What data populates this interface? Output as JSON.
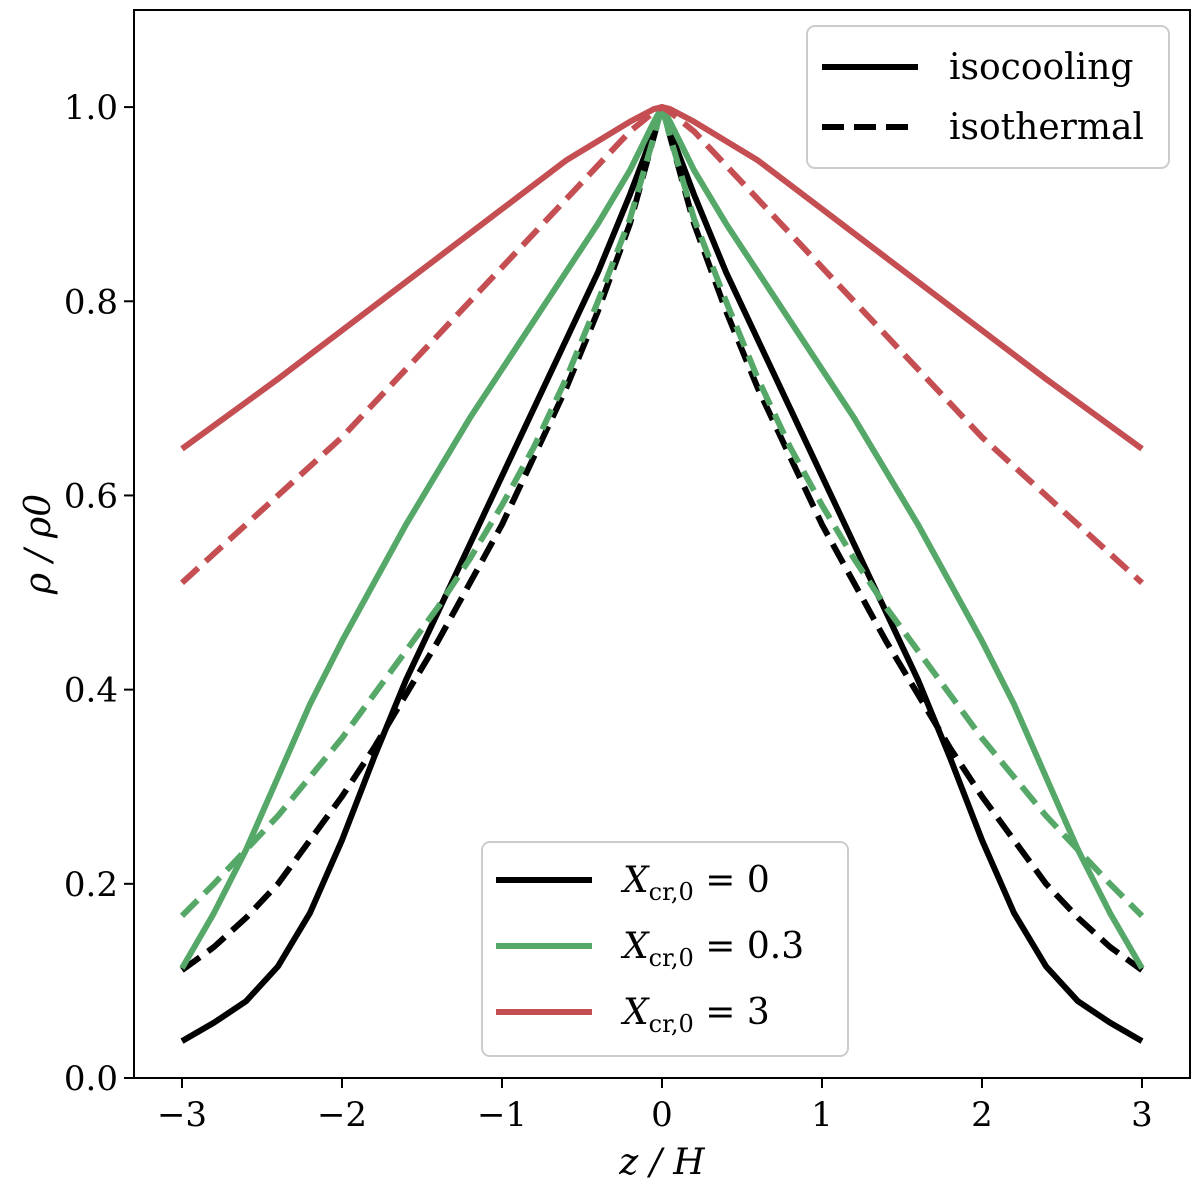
{
  "chart_data": {
    "type": "line",
    "title": "",
    "xlabel": "z / H",
    "ylabel": "ρ / ρ0",
    "xlim": [
      -3.3,
      3.3
    ],
    "ylim": [
      0.0,
      1.1
    ],
    "xticks": [
      -3,
      -2,
      -1,
      0,
      1,
      2,
      3
    ],
    "xtick_labels": [
      "−3",
      "−2",
      "−1",
      "0",
      "1",
      "2",
      "3"
    ],
    "yticks": [
      0.0,
      0.2,
      0.4,
      0.6,
      0.8,
      1.0
    ],
    "ytick_labels": [
      "0.0",
      "0.2",
      "0.4",
      "0.6",
      "0.8",
      "1.0"
    ],
    "grid": false,
    "x": [
      -3.0,
      -2.8,
      -2.6,
      -2.4,
      -2.2,
      -2.0,
      -1.8,
      -1.6,
      -1.4,
      -1.2,
      -1.0,
      -0.8,
      -0.6,
      -0.4,
      -0.2,
      -0.05,
      0.0,
      0.05,
      0.2,
      0.4,
      0.6,
      0.8,
      1.0,
      1.2,
      1.4,
      1.6,
      1.8,
      2.0,
      2.2,
      2.4,
      2.6,
      2.8,
      3.0
    ],
    "series": [
      {
        "name": "X_cr,0 = 0 isocooling",
        "color": "#000000",
        "dash": "solid",
        "values": [
          0.038,
          0.057,
          0.079,
          0.115,
          0.17,
          0.245,
          0.33,
          0.41,
          0.48,
          0.55,
          0.62,
          0.69,
          0.76,
          0.83,
          0.91,
          0.975,
          1.0,
          0.975,
          0.91,
          0.83,
          0.76,
          0.69,
          0.62,
          0.55,
          0.48,
          0.41,
          0.33,
          0.245,
          0.17,
          0.115,
          0.079,
          0.057,
          0.038
        ]
      },
      {
        "name": "X_cr,0 = 0 isothermal",
        "color": "#000000",
        "dash": "dashed",
        "values": [
          0.111,
          0.135,
          0.165,
          0.2,
          0.245,
          0.29,
          0.34,
          0.395,
          0.45,
          0.51,
          0.57,
          0.64,
          0.71,
          0.79,
          0.88,
          0.97,
          1.0,
          0.97,
          0.88,
          0.79,
          0.71,
          0.64,
          0.57,
          0.51,
          0.45,
          0.395,
          0.34,
          0.29,
          0.245,
          0.2,
          0.165,
          0.135,
          0.111
        ]
      },
      {
        "name": "X_cr,0 = 0.3 isocooling",
        "color": "#55a868",
        "dash": "solid",
        "values": [
          0.113,
          0.17,
          0.235,
          0.31,
          0.385,
          0.45,
          0.51,
          0.57,
          0.625,
          0.68,
          0.73,
          0.78,
          0.83,
          0.88,
          0.935,
          0.985,
          1.0,
          0.985,
          0.935,
          0.88,
          0.83,
          0.78,
          0.73,
          0.68,
          0.625,
          0.57,
          0.51,
          0.45,
          0.385,
          0.31,
          0.235,
          0.17,
          0.113
        ]
      },
      {
        "name": "X_cr,0 = 0.3 isothermal",
        "color": "#55a868",
        "dash": "dashed",
        "values": [
          0.167,
          0.2,
          0.235,
          0.27,
          0.31,
          0.35,
          0.395,
          0.44,
          0.485,
          0.535,
          0.59,
          0.65,
          0.72,
          0.8,
          0.885,
          0.97,
          1.0,
          0.97,
          0.885,
          0.8,
          0.72,
          0.65,
          0.59,
          0.535,
          0.485,
          0.44,
          0.395,
          0.35,
          0.31,
          0.27,
          0.235,
          0.2,
          0.167
        ]
      },
      {
        "name": "X_cr,0 = 3 isocooling",
        "color": "#c44e52",
        "dash": "solid",
        "values": [
          0.648,
          0.672,
          0.696,
          0.72,
          0.745,
          0.77,
          0.795,
          0.82,
          0.845,
          0.87,
          0.895,
          0.92,
          0.945,
          0.965,
          0.985,
          0.998,
          1.0,
          0.998,
          0.985,
          0.965,
          0.945,
          0.92,
          0.895,
          0.87,
          0.845,
          0.82,
          0.795,
          0.77,
          0.745,
          0.72,
          0.696,
          0.672,
          0.648
        ]
      },
      {
        "name": "X_cr,0 = 3 isothermal",
        "color": "#c44e52",
        "dash": "dashed",
        "values": [
          0.51,
          0.54,
          0.57,
          0.6,
          0.63,
          0.66,
          0.695,
          0.73,
          0.765,
          0.8,
          0.835,
          0.87,
          0.905,
          0.94,
          0.975,
          0.995,
          1.0,
          0.995,
          0.975,
          0.94,
          0.905,
          0.87,
          0.835,
          0.8,
          0.765,
          0.73,
          0.695,
          0.66,
          0.63,
          0.6,
          0.57,
          0.54,
          0.51
        ]
      }
    ],
    "legend_style": {
      "placement": "upper right",
      "entries": [
        {
          "label": "isocooling",
          "dash": "solid",
          "color": "#000000"
        },
        {
          "label": "isothermal",
          "dash": "dashed",
          "color": "#000000"
        }
      ]
    },
    "legend_params": {
      "placement": "lower center",
      "entries": [
        {
          "prefix": "X",
          "subscript": "cr,0",
          "suffix": " = 0",
          "color": "#000000"
        },
        {
          "prefix": "X",
          "subscript": "cr,0",
          "suffix": " = 0.3",
          "color": "#55a868"
        },
        {
          "prefix": "X",
          "subscript": "cr,0",
          "suffix": " = 3",
          "color": "#c44e52"
        }
      ]
    }
  }
}
